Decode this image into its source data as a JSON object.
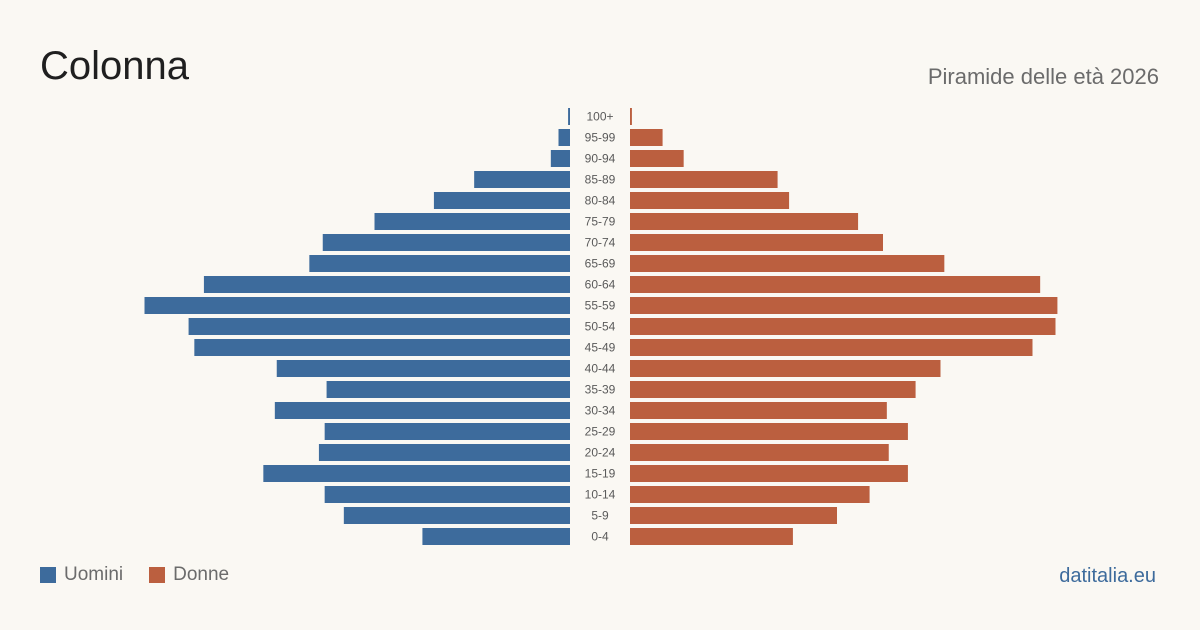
{
  "title": "Colonna",
  "subtitle": "Piramide delle età 2026",
  "source": "datitalia.eu",
  "colors": {
    "male": "#3d6b9c",
    "female": "#bb5f3f",
    "source": "#3d6b9c"
  },
  "legend": {
    "male": "Uomini",
    "female": "Donne"
  },
  "chart_data": {
    "type": "bar",
    "orientation": "horizontal-pyramid",
    "categories": [
      "100+",
      "95-99",
      "90-94",
      "85-89",
      "80-84",
      "75-79",
      "70-74",
      "65-69",
      "60-64",
      "55-59",
      "50-54",
      "45-49",
      "40-44",
      "35-39",
      "30-34",
      "25-29",
      "20-24",
      "15-19",
      "10-14",
      "5-9",
      "0-4"
    ],
    "series": [
      {
        "name": "Uomini",
        "values": [
          1,
          6,
          10,
          50,
          71,
          102,
          129,
          136,
          191,
          222,
          199,
          196,
          153,
          127,
          154,
          128,
          131,
          160,
          128,
          118,
          77
        ]
      },
      {
        "name": "Donne",
        "values": [
          1,
          17,
          28,
          77,
          83,
          119,
          132,
          164,
          214,
          223,
          222,
          210,
          162,
          149,
          134,
          145,
          135,
          145,
          125,
          108,
          85
        ]
      }
    ],
    "xlim": [
      0,
      240
    ],
    "legend_position": "bottom-left"
  }
}
